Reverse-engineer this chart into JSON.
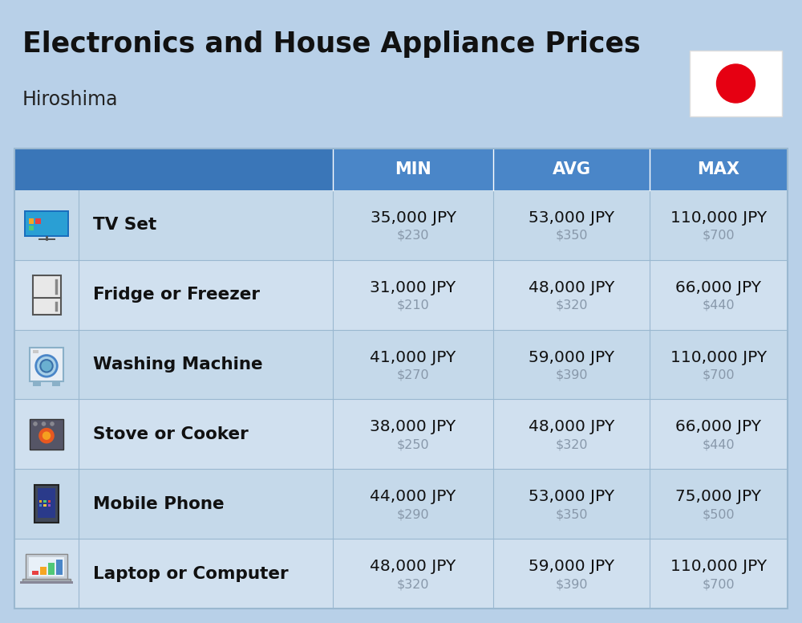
{
  "title": "Electronics and House Appliance Prices",
  "subtitle": "Hiroshima",
  "background_color": "#b8d0e8",
  "header_color": "#4a86c8",
  "header_dark_color": "#3a76b8",
  "header_text_color": "#ffffff",
  "row_color_odd": "#c5d9ea",
  "row_color_even": "#d0e0ef",
  "divider_color": "#9ab8d0",
  "col_headers": [
    "MIN",
    "AVG",
    "MAX"
  ],
  "items": [
    {
      "name": "TV Set",
      "min_jpy": "35,000 JPY",
      "min_usd": "$230",
      "avg_jpy": "53,000 JPY",
      "avg_usd": "$350",
      "max_jpy": "110,000 JPY",
      "max_usd": "$700"
    },
    {
      "name": "Fridge or Freezer",
      "min_jpy": "31,000 JPY",
      "min_usd": "$210",
      "avg_jpy": "48,000 JPY",
      "avg_usd": "$320",
      "max_jpy": "66,000 JPY",
      "max_usd": "$440"
    },
    {
      "name": "Washing Machine",
      "min_jpy": "41,000 JPY",
      "min_usd": "$270",
      "avg_jpy": "59,000 JPY",
      "avg_usd": "$390",
      "max_jpy": "110,000 JPY",
      "max_usd": "$700"
    },
    {
      "name": "Stove or Cooker",
      "min_jpy": "38,000 JPY",
      "min_usd": "$250",
      "avg_jpy": "48,000 JPY",
      "avg_usd": "$320",
      "max_jpy": "66,000 JPY",
      "max_usd": "$440"
    },
    {
      "name": "Mobile Phone",
      "min_jpy": "44,000 JPY",
      "min_usd": "$290",
      "avg_jpy": "53,000 JPY",
      "avg_usd": "$350",
      "max_jpy": "75,000 JPY",
      "max_usd": "$500"
    },
    {
      "name": "Laptop or Computer",
      "min_jpy": "48,000 JPY",
      "min_usd": "$320",
      "avg_jpy": "59,000 JPY",
      "avg_usd": "$390",
      "max_jpy": "110,000 JPY",
      "max_usd": "$700"
    }
  ],
  "jpy_fontsize": 14.5,
  "usd_fontsize": 11.5,
  "name_fontsize": 15.5,
  "header_fontsize": 15,
  "title_fontsize": 25,
  "subtitle_fontsize": 17,
  "usd_color": "#8898aa",
  "name_color": "#111111",
  "jpy_color": "#111111",
  "flag_red": "#e60012"
}
